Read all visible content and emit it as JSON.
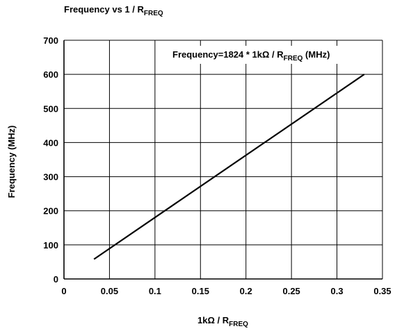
{
  "chart_data": {
    "type": "line",
    "title": "Frequency vs 1 / R",
    "title_subscript": "FREQ",
    "xlabel": "1kΩ / R",
    "xlabel_subscript": "FREQ",
    "ylabel": "Frequency (MHz)",
    "annotation": "Frequency=1824 * 1kΩ / R",
    "annotation_subscript": "FREQ",
    "annotation_suffix": " (MHz)",
    "xlim": [
      0,
      0.35
    ],
    "ylim": [
      0,
      700
    ],
    "x_ticks": [
      "0",
      "0.05",
      "0.1",
      "0.15",
      "0.2",
      "0.25",
      "0.3",
      "0.35"
    ],
    "y_ticks": [
      "0",
      "100",
      "200",
      "300",
      "400",
      "500",
      "600",
      "700"
    ],
    "grid": true,
    "series": [
      {
        "x": [
          0.033,
          0.33
        ],
        "y": [
          58,
          600
        ]
      }
    ],
    "colors": {
      "line": "#000000",
      "grid": "#000000"
    }
  }
}
